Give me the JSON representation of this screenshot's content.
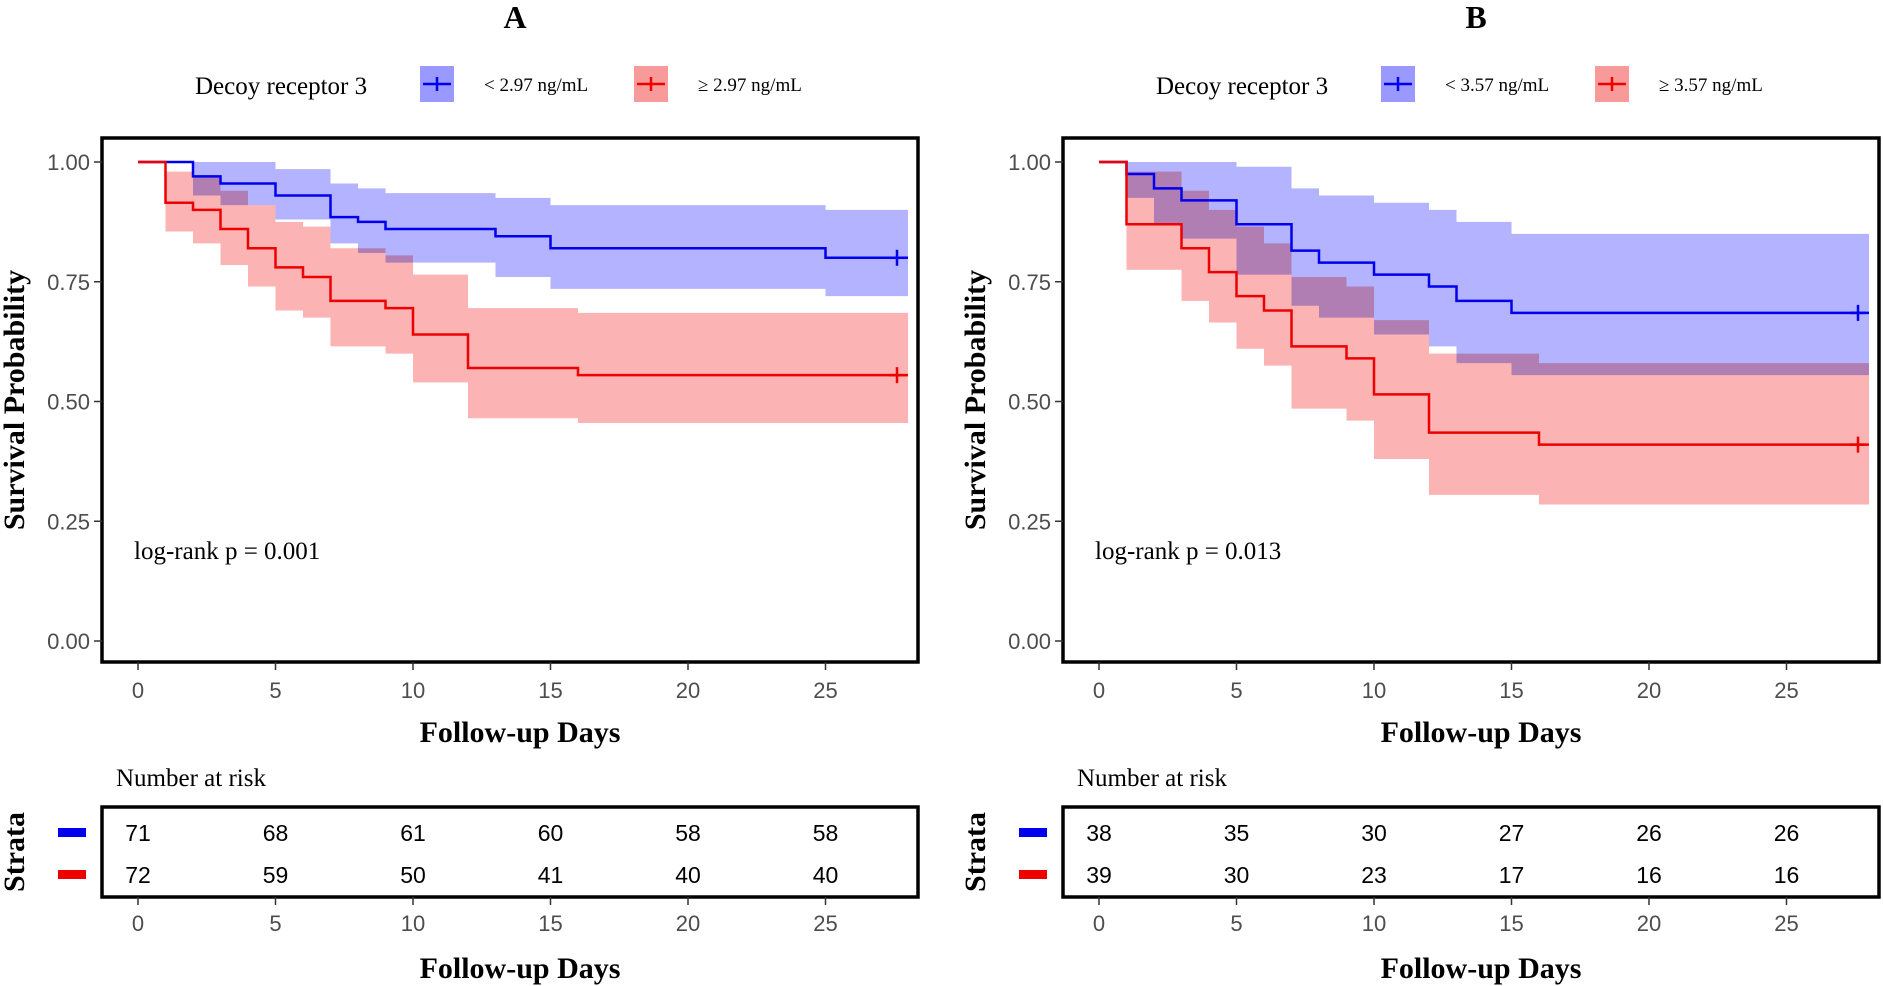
{
  "chart_data": [
    {
      "type": "line",
      "subtype": "kaplan-meier",
      "panel_label": "A",
      "legend_title": "Decoy receptor 3",
      "xlabel": "Follow-up Days",
      "ylabel": "Survival Probability",
      "xlim": [
        0,
        28
      ],
      "ylim": [
        0,
        1
      ],
      "x_ticks": [
        "0",
        "5",
        "10",
        "15",
        "20",
        "25"
      ],
      "y_ticks": [
        "0.00",
        "0.25",
        "0.50",
        "0.75",
        "1.00"
      ],
      "pvalue": "log-rank p = 0.001",
      "series": [
        {
          "name": "< 2.97 ng/mL",
          "color": "#0000ee",
          "fill": "#9999ff",
          "times": [
            0,
            2,
            3,
            5,
            7,
            8,
            9,
            13,
            15,
            25,
            28
          ],
          "surv": [
            1.0,
            0.97,
            0.955,
            0.93,
            0.885,
            0.875,
            0.86,
            0.845,
            0.82,
            0.8,
            0.8
          ],
          "lower": [
            1.0,
            0.93,
            0.91,
            0.88,
            0.83,
            0.81,
            0.79,
            0.76,
            0.735,
            0.72,
            0.72
          ],
          "upper": [
            1.0,
            1.0,
            1.0,
            0.985,
            0.955,
            0.945,
            0.935,
            0.925,
            0.91,
            0.9,
            0.9
          ]
        },
        {
          "name": "≥ 2.97 ng/mL",
          "color": "#ee0000",
          "fill": "#f99a9a",
          "times": [
            0,
            1,
            2,
            3,
            4,
            5,
            6,
            7,
            9,
            10,
            12,
            16,
            28
          ],
          "surv": [
            1.0,
            0.915,
            0.9,
            0.86,
            0.82,
            0.78,
            0.76,
            0.71,
            0.695,
            0.64,
            0.57,
            0.555,
            0.555
          ],
          "lower": [
            1.0,
            0.855,
            0.83,
            0.785,
            0.74,
            0.69,
            0.675,
            0.615,
            0.6,
            0.54,
            0.465,
            0.455,
            0.455
          ],
          "upper": [
            1.0,
            0.98,
            0.97,
            0.94,
            0.91,
            0.875,
            0.865,
            0.82,
            0.805,
            0.765,
            0.695,
            0.685,
            0.685
          ]
        }
      ],
      "risk_table": {
        "title": "Number at risk",
        "strata_label": "Strata",
        "times": [
          "0",
          "5",
          "10",
          "15",
          "20",
          "25"
        ],
        "rows": [
          {
            "color": "#0000ee",
            "values": [
              "71",
              "68",
              "61",
              "60",
              "58",
              "58"
            ]
          },
          {
            "color": "#ee0000",
            "values": [
              "72",
              "59",
              "50",
              "41",
              "40",
              "40"
            ]
          }
        ],
        "xlabel": "Follow-up Days"
      }
    },
    {
      "type": "line",
      "subtype": "kaplan-meier",
      "panel_label": "B",
      "legend_title": "Decoy receptor 3",
      "xlabel": "Follow-up Days",
      "ylabel": "Survival Probability",
      "xlim": [
        0,
        28
      ],
      "ylim": [
        0,
        1
      ],
      "x_ticks": [
        "0",
        "5",
        "10",
        "15",
        "20",
        "25"
      ],
      "y_ticks": [
        "0.00",
        "0.25",
        "0.50",
        "0.75",
        "1.00"
      ],
      "pvalue": "log-rank p = 0.013",
      "series": [
        {
          "name": "< 3.57 ng/mL",
          "color": "#0000ee",
          "fill": "#9999ff",
          "times": [
            0,
            1,
            2,
            3,
            5,
            7,
            8,
            10,
            12,
            13,
            15,
            28
          ],
          "surv": [
            1.0,
            0.975,
            0.945,
            0.92,
            0.87,
            0.815,
            0.79,
            0.765,
            0.74,
            0.71,
            0.685,
            0.685
          ],
          "lower": [
            1.0,
            0.925,
            0.87,
            0.84,
            0.765,
            0.7,
            0.675,
            0.64,
            0.615,
            0.58,
            0.555,
            0.555
          ],
          "upper": [
            1.0,
            1.0,
            1.0,
            1.0,
            0.99,
            0.945,
            0.93,
            0.915,
            0.9,
            0.875,
            0.85,
            0.85
          ]
        },
        {
          "name": "≥ 3.57 ng/mL",
          "color": "#ee0000",
          "fill": "#f99a9a",
          "times": [
            0,
            1,
            3,
            4,
            5,
            6,
            7,
            9,
            10,
            12,
            16,
            28
          ],
          "surv": [
            1.0,
            0.87,
            0.82,
            0.77,
            0.72,
            0.69,
            0.615,
            0.59,
            0.515,
            0.435,
            0.41,
            0.41
          ],
          "lower": [
            1.0,
            0.775,
            0.71,
            0.665,
            0.61,
            0.575,
            0.485,
            0.46,
            0.38,
            0.305,
            0.285,
            0.285
          ],
          "upper": [
            1.0,
            0.98,
            0.94,
            0.9,
            0.865,
            0.83,
            0.76,
            0.74,
            0.67,
            0.6,
            0.58,
            0.58
          ]
        }
      ],
      "risk_table": {
        "title": "Number at risk",
        "strata_label": "Strata",
        "times": [
          "0",
          "5",
          "10",
          "15",
          "20",
          "25"
        ],
        "rows": [
          {
            "color": "#0000ee",
            "values": [
              "38",
              "35",
              "30",
              "27",
              "26",
              "26"
            ]
          },
          {
            "color": "#ee0000",
            "values": [
              "39",
              "30",
              "23",
              "17",
              "16",
              "16"
            ]
          }
        ],
        "xlabel": "Follow-up Days"
      }
    }
  ]
}
